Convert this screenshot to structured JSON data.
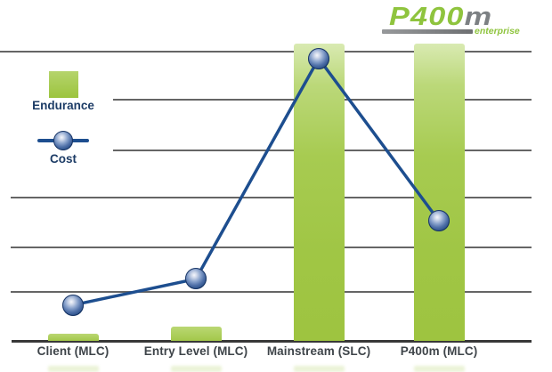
{
  "logo": {
    "wordmark_green": "P400",
    "wordmark_gray": "m",
    "tagline": "enterprise"
  },
  "legend": {
    "endurance_label": "Endurance",
    "cost_label": "Cost"
  },
  "chart_data": {
    "type": "combo",
    "categories": [
      "Client (MLC)",
      "Entry Level (MLC)",
      "Mainstream (SLC)",
      "P400m (MLC)"
    ],
    "series": [
      {
        "name": "Endurance",
        "type": "bar",
        "color": "#a0c645",
        "values": [
          0.15,
          0.3,
          6.15,
          6.15
        ]
      },
      {
        "name": "Cost",
        "type": "line",
        "color": "#1d4e8f",
        "values": [
          0.74,
          1.28,
          5.84,
          2.48
        ]
      }
    ],
    "title": "",
    "xlabel": "",
    "ylabel": "",
    "ylim": [
      0,
      6.3
    ],
    "y_axis_note": "no numeric axis shown; values expressed in gridline units (1 unit = 1 gridline interval, baseline = 0)",
    "gridline_count": 7,
    "grid": true,
    "legend_position": "upper-left",
    "marker_style": "blue glossy sphere"
  },
  "colors": {
    "bar_green": "#a0c645",
    "bar_green_light": "#d9eab2",
    "line_navy": "#1d4e8f",
    "grid_gray": "#4a4a4a",
    "axis_dark": "#383838",
    "label_gray": "#3e4449",
    "legend_text_navy": "#1d3c66",
    "logo_green": "#8fc43e",
    "logo_gray": "#7c8083"
  }
}
